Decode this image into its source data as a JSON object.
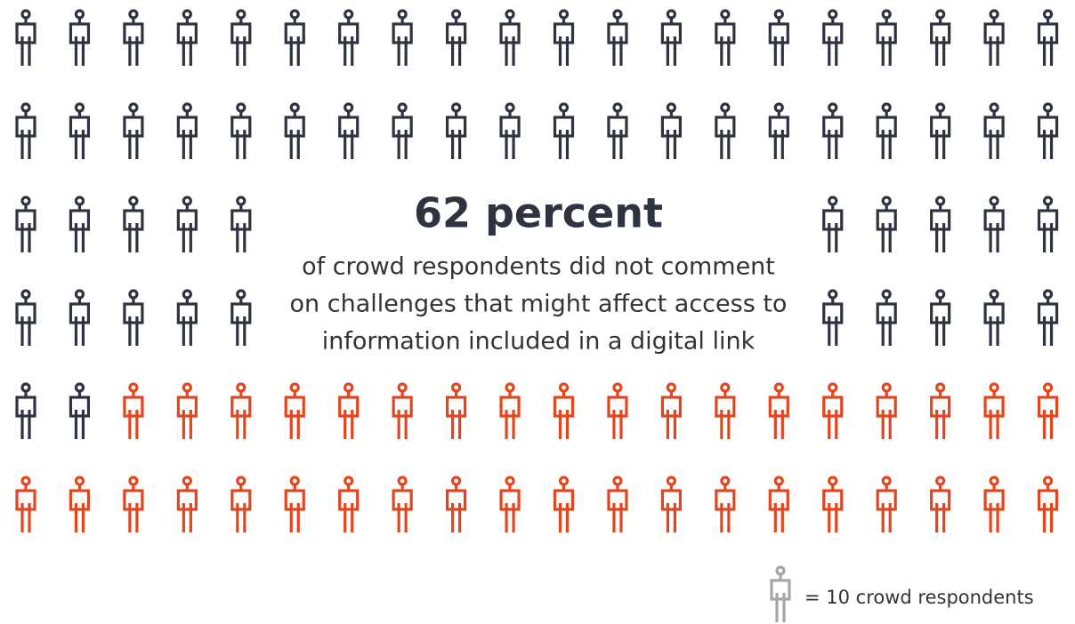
{
  "chart_data": {
    "type": "pictogram",
    "headline": "62 percent",
    "subtitle_lines": [
      "of crowd respondents did not comment",
      "on challenges that might affect access to",
      "information included in a digital link"
    ],
    "values": [
      62,
      38
    ],
    "colors": [
      "#2f3340",
      "#e3461e"
    ],
    "legend": {
      "label": "= 10 crowd respondents",
      "color": "#a6a6a6"
    }
  }
}
